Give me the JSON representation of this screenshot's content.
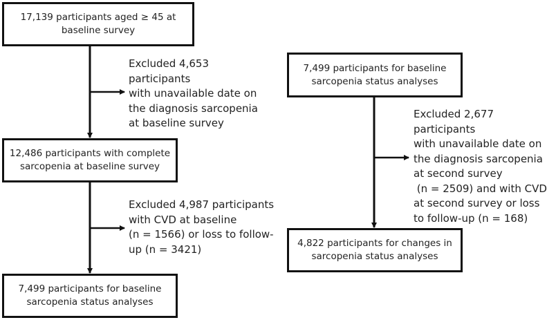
{
  "left": {
    "box1": [
      "17,139 participants aged ≥ 45 at",
      "baseline survey"
    ],
    "exclusion1": [
      "Excluded 4,653",
      "participants",
      "with unavailable date on",
      "the diagnosis sarcopenia",
      "at baseline survey"
    ],
    "box2": [
      "12,486 participants with complete",
      "sarcopenia at baseline survey"
    ],
    "exclusion2": [
      "Excluded 4,987 participants",
      "with CVD at baseline",
      "(n = 1566) or  loss to follow-",
      "up (n = 3421)"
    ],
    "box3": [
      "7,499 participants for baseline",
      "sarcopenia status analyses"
    ]
  },
  "right": {
    "box1": [
      "7,499 participants for baseline",
      "sarcopenia status analyses"
    ],
    "exclusion1": [
      "Excluded 2,677",
      "participants",
      "with unavailable date on",
      "the diagnosis sarcopenia",
      "at second survey",
      " (n = 2509) and with CVD",
      "at second survey or  loss",
      "to follow-up (n = 168)"
    ],
    "box2": [
      "4,822 participants for changes in",
      "sarcopenia status analyses"
    ]
  }
}
